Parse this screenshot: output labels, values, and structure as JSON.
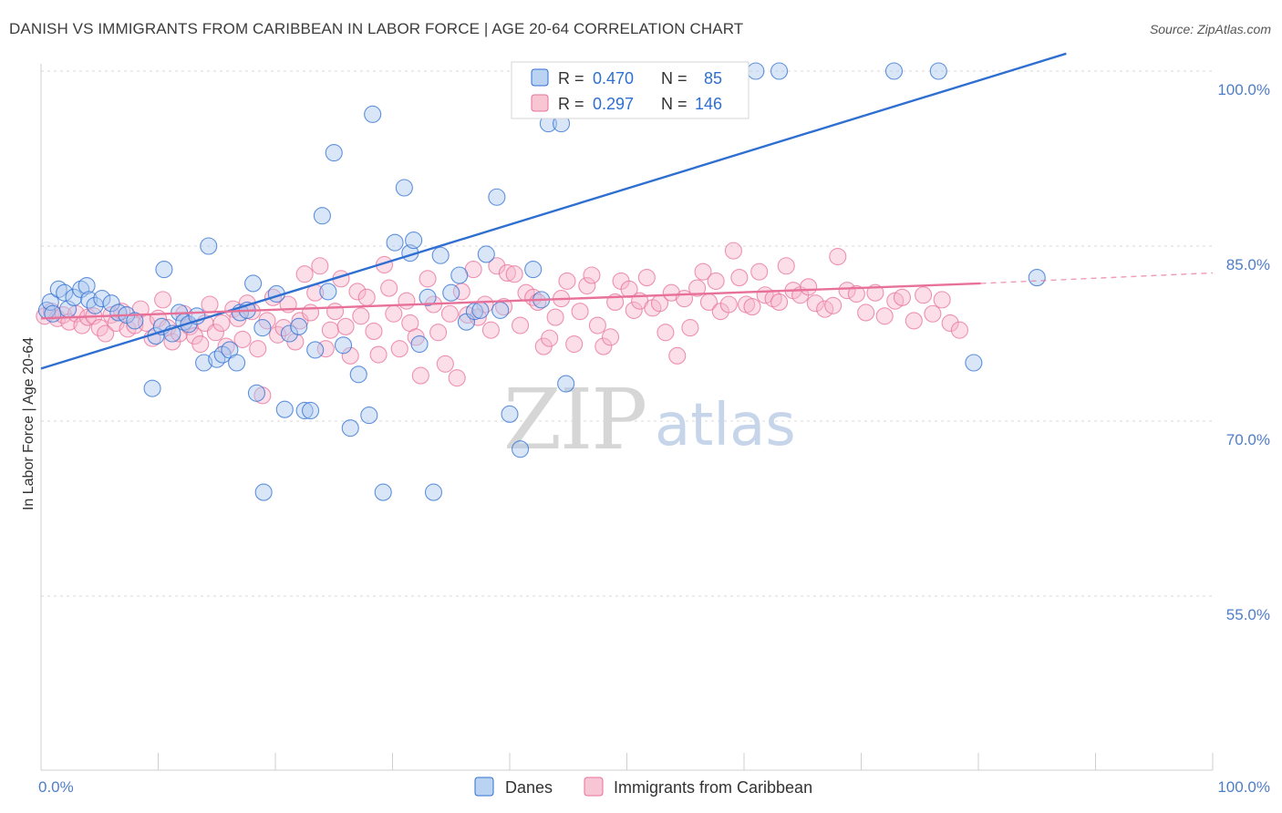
{
  "title": "DANISH VS IMMIGRANTS FROM CARIBBEAN IN LABOR FORCE | AGE 20-64 CORRELATION CHART",
  "source": "Source: ZipAtlas.com",
  "watermark": {
    "zip": "ZIP",
    "atlas": "atlas"
  },
  "colors": {
    "blue": "#2f6fd1",
    "blue_fill": "#aac8f0",
    "pink": "#e8719a",
    "pink_fill": "#f6b6cb",
    "grid": "#d8d8d8",
    "axis_label": "#4f7ec9"
  },
  "legend": {
    "items": [
      {
        "r_label": "R =",
        "r_value": "0.470",
        "n_label": "N =",
        "n_value": "85"
      },
      {
        "r_label": "R =",
        "r_value": "0.297",
        "n_label": "N =",
        "n_value": "146"
      }
    ]
  },
  "bottom_legend": [
    "Danes",
    "Immigrants from Caribbean"
  ],
  "chart_data": {
    "type": "scatter",
    "title": "DANISH VS IMMIGRANTS FROM CARIBBEAN IN LABOR FORCE | AGE 20-64 CORRELATION CHART",
    "xlabel": "",
    "ylabel": "In Labor Force | Age 20-64",
    "xlim": [
      0,
      100
    ],
    "ylim": [
      40,
      101.5
    ],
    "x_tick_labels": [
      "0.0%",
      "100.0%"
    ],
    "y_ticks": [
      55,
      70,
      85,
      100
    ],
    "y_tick_labels": [
      "55.0%",
      "70.0%",
      "85.0%",
      "100.0%"
    ],
    "grid": "horizontal dashed",
    "legend_position": "top-center",
    "series": [
      {
        "name": "Danes",
        "r": 0.47,
        "n": 85,
        "trend": {
          "x": [
            0,
            87.5
          ],
          "y": [
            74.5,
            101.5
          ],
          "dashed_from": null
        },
        "points": [
          [
            0.5,
            79.5
          ],
          [
            0.8,
            80.2
          ],
          [
            1.0,
            79.2
          ],
          [
            1.5,
            81.3
          ],
          [
            2.0,
            81.0
          ],
          [
            2.3,
            79.6
          ],
          [
            2.8,
            80.6
          ],
          [
            3.4,
            81.3
          ],
          [
            3.9,
            81.6
          ],
          [
            4.1,
            80.4
          ],
          [
            4.6,
            79.9
          ],
          [
            5.2,
            80.5
          ],
          [
            6.0,
            80.1
          ],
          [
            6.6,
            79.3
          ],
          [
            7.3,
            79.1
          ],
          [
            8.0,
            78.6
          ],
          [
            9.5,
            72.8
          ],
          [
            9.8,
            77.3
          ],
          [
            10.3,
            78.1
          ],
          [
            10.5,
            83.0
          ],
          [
            11.2,
            77.5
          ],
          [
            11.8,
            79.3
          ],
          [
            12.2,
            78.5
          ],
          [
            12.6,
            78.3
          ],
          [
            13.3,
            79.0
          ],
          [
            13.9,
            75.0
          ],
          [
            14.3,
            85.0
          ],
          [
            15.0,
            75.3
          ],
          [
            15.5,
            75.7
          ],
          [
            16.1,
            76.1
          ],
          [
            16.7,
            75.0
          ],
          [
            17.0,
            79.3
          ],
          [
            17.6,
            79.5
          ],
          [
            18.1,
            81.8
          ],
          [
            18.4,
            72.4
          ],
          [
            18.9,
            78.0
          ],
          [
            19.0,
            63.9
          ],
          [
            20.1,
            80.9
          ],
          [
            20.8,
            71.0
          ],
          [
            21.2,
            77.5
          ],
          [
            22.0,
            78.1
          ],
          [
            22.5,
            70.9
          ],
          [
            23.0,
            70.9
          ],
          [
            23.4,
            76.1
          ],
          [
            24.0,
            87.6
          ],
          [
            24.5,
            81.1
          ],
          [
            25.0,
            93.0
          ],
          [
            25.8,
            76.5
          ],
          [
            26.4,
            69.4
          ],
          [
            27.1,
            74.0
          ],
          [
            28.0,
            70.5
          ],
          [
            28.3,
            96.3
          ],
          [
            29.2,
            63.9
          ],
          [
            30.2,
            85.3
          ],
          [
            31.0,
            90.0
          ],
          [
            31.5,
            84.4
          ],
          [
            31.8,
            85.5
          ],
          [
            32.3,
            76.6
          ],
          [
            33.0,
            80.6
          ],
          [
            33.5,
            63.9
          ],
          [
            34.1,
            84.2
          ],
          [
            35.0,
            81.0
          ],
          [
            35.7,
            82.5
          ],
          [
            36.3,
            78.5
          ],
          [
            37.0,
            79.4
          ],
          [
            37.5,
            79.5
          ],
          [
            38.0,
            84.3
          ],
          [
            38.9,
            89.2
          ],
          [
            39.2,
            79.5
          ],
          [
            40.0,
            70.6
          ],
          [
            40.9,
            67.6
          ],
          [
            42.0,
            83.0
          ],
          [
            42.7,
            80.4
          ],
          [
            43.3,
            95.5
          ],
          [
            44.4,
            95.5
          ],
          [
            44.8,
            73.2
          ],
          [
            45.4,
            100.0
          ],
          [
            51.9,
            100.0
          ],
          [
            52.7,
            100.0
          ],
          [
            61.0,
            100.0
          ],
          [
            63.0,
            100.0
          ],
          [
            72.8,
            100.0
          ],
          [
            76.6,
            100.0
          ],
          [
            79.6,
            75.0
          ],
          [
            85.0,
            82.3
          ]
        ]
      },
      {
        "name": "Immigrants from Caribbean",
        "r": 0.297,
        "n": 146,
        "trend": {
          "x": [
            0,
            80.2
          ],
          "y": [
            78.8,
            81.8
          ],
          "dashed_to": [
            100,
            82.7
          ]
        },
        "points": [
          [
            0.3,
            79.0
          ],
          [
            0.9,
            79.4
          ],
          [
            1.4,
            78.8
          ],
          [
            1.9,
            79.1
          ],
          [
            2.4,
            78.5
          ],
          [
            3.0,
            79.2
          ],
          [
            3.5,
            78.2
          ],
          [
            4.0,
            78.9
          ],
          [
            4.5,
            79.0
          ],
          [
            5.0,
            78.0
          ],
          [
            5.5,
            77.5
          ],
          [
            6.0,
            79.1
          ],
          [
            6.4,
            78.4
          ],
          [
            6.9,
            79.4
          ],
          [
            7.4,
            77.9
          ],
          [
            8.0,
            78.2
          ],
          [
            8.5,
            79.6
          ],
          [
            9.0,
            78.4
          ],
          [
            9.5,
            77.1
          ],
          [
            10.0,
            78.8
          ],
          [
            10.4,
            80.4
          ],
          [
            10.8,
            78.0
          ],
          [
            11.2,
            76.8
          ],
          [
            11.8,
            77.5
          ],
          [
            12.2,
            79.2
          ],
          [
            12.7,
            78.1
          ],
          [
            13.1,
            77.3
          ],
          [
            13.6,
            76.6
          ],
          [
            14.0,
            78.4
          ],
          [
            14.4,
            80.0
          ],
          [
            14.9,
            77.6
          ],
          [
            15.4,
            78.4
          ],
          [
            15.8,
            76.4
          ],
          [
            16.4,
            79.6
          ],
          [
            16.8,
            78.8
          ],
          [
            17.2,
            77.0
          ],
          [
            17.6,
            80.1
          ],
          [
            18.0,
            79.4
          ],
          [
            18.5,
            76.2
          ],
          [
            18.9,
            72.2
          ],
          [
            19.3,
            78.6
          ],
          [
            19.8,
            80.6
          ],
          [
            20.2,
            77.4
          ],
          [
            20.7,
            78.0
          ],
          [
            21.1,
            80.0
          ],
          [
            21.7,
            76.8
          ],
          [
            22.1,
            78.6
          ],
          [
            22.5,
            82.6
          ],
          [
            23.0,
            79.3
          ],
          [
            23.4,
            81.0
          ],
          [
            23.8,
            83.3
          ],
          [
            24.3,
            76.2
          ],
          [
            24.7,
            77.8
          ],
          [
            25.1,
            79.4
          ],
          [
            25.6,
            82.2
          ],
          [
            26.0,
            78.1
          ],
          [
            26.4,
            75.6
          ],
          [
            27.0,
            81.1
          ],
          [
            27.3,
            79.0
          ],
          [
            27.8,
            80.6
          ],
          [
            28.4,
            77.7
          ],
          [
            28.8,
            75.7
          ],
          [
            29.3,
            83.4
          ],
          [
            29.7,
            81.4
          ],
          [
            30.1,
            79.2
          ],
          [
            30.6,
            76.2
          ],
          [
            31.2,
            80.3
          ],
          [
            31.5,
            78.4
          ],
          [
            32.0,
            77.2
          ],
          [
            32.4,
            73.9
          ],
          [
            33.0,
            82.2
          ],
          [
            33.5,
            80.0
          ],
          [
            33.9,
            77.6
          ],
          [
            34.5,
            74.9
          ],
          [
            34.9,
            79.2
          ],
          [
            35.5,
            73.7
          ],
          [
            35.9,
            81.1
          ],
          [
            36.4,
            79.1
          ],
          [
            36.9,
            83.0
          ],
          [
            37.3,
            78.9
          ],
          [
            37.9,
            80.0
          ],
          [
            38.4,
            77.8
          ],
          [
            38.9,
            83.3
          ],
          [
            39.5,
            79.8
          ],
          [
            39.8,
            82.7
          ],
          [
            40.4,
            82.6
          ],
          [
            40.9,
            78.2
          ],
          [
            41.4,
            81.0
          ],
          [
            42.0,
            80.6
          ],
          [
            42.4,
            80.2
          ],
          [
            42.9,
            76.4
          ],
          [
            43.4,
            77.1
          ],
          [
            43.9,
            78.9
          ],
          [
            44.4,
            80.5
          ],
          [
            44.9,
            82.0
          ],
          [
            45.5,
            76.6
          ],
          [
            46.0,
            79.4
          ],
          [
            46.6,
            81.6
          ],
          [
            47.0,
            82.5
          ],
          [
            47.5,
            78.2
          ],
          [
            48.0,
            76.4
          ],
          [
            48.6,
            77.2
          ],
          [
            49.0,
            80.2
          ],
          [
            49.5,
            82.0
          ],
          [
            50.2,
            81.3
          ],
          [
            50.6,
            79.5
          ],
          [
            51.1,
            80.3
          ],
          [
            51.7,
            82.3
          ],
          [
            52.2,
            79.7
          ],
          [
            52.8,
            80.1
          ],
          [
            53.3,
            77.6
          ],
          [
            53.8,
            81.0
          ],
          [
            54.3,
            75.6
          ],
          [
            54.9,
            80.5
          ],
          [
            55.4,
            78.0
          ],
          [
            56.0,
            81.4
          ],
          [
            56.5,
            82.8
          ],
          [
            57.0,
            80.2
          ],
          [
            57.6,
            82.0
          ],
          [
            58.0,
            79.4
          ],
          [
            58.7,
            80.0
          ],
          [
            59.1,
            84.6
          ],
          [
            59.6,
            82.3
          ],
          [
            60.2,
            80.0
          ],
          [
            60.7,
            79.8
          ],
          [
            61.3,
            82.8
          ],
          [
            61.8,
            80.8
          ],
          [
            62.5,
            80.5
          ],
          [
            63.0,
            80.2
          ],
          [
            63.6,
            83.3
          ],
          [
            64.2,
            81.2
          ],
          [
            64.8,
            80.8
          ],
          [
            65.5,
            81.5
          ],
          [
            66.1,
            80.1
          ],
          [
            66.9,
            79.6
          ],
          [
            67.6,
            79.9
          ],
          [
            68.0,
            84.1
          ],
          [
            68.8,
            81.2
          ],
          [
            69.6,
            80.9
          ],
          [
            70.4,
            79.3
          ],
          [
            71.2,
            81.0
          ],
          [
            72.0,
            79.0
          ],
          [
            72.9,
            80.3
          ],
          [
            73.5,
            80.6
          ],
          [
            74.5,
            78.6
          ],
          [
            75.3,
            80.8
          ],
          [
            76.1,
            79.2
          ],
          [
            76.9,
            80.4
          ],
          [
            77.6,
            78.4
          ],
          [
            78.4,
            77.8
          ]
        ]
      }
    ]
  }
}
